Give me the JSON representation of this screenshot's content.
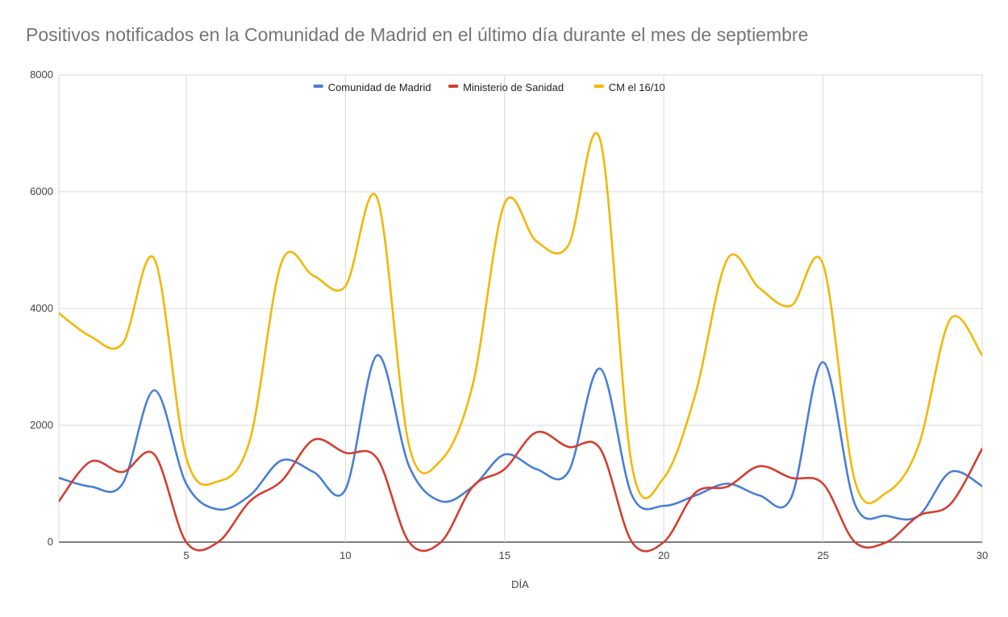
{
  "chart_data": {
    "type": "line",
    "title": "Positivos notificados en la Comunidad de Madrid en el último día durante el mes de septiembre",
    "xlabel": "DÍA",
    "ylabel": "",
    "xlim": [
      1,
      30
    ],
    "ylim": [
      0,
      8000
    ],
    "x_ticks": [
      5,
      10,
      15,
      20,
      25,
      30
    ],
    "y_ticks": [
      0,
      2000,
      4000,
      6000,
      8000
    ],
    "grid": true,
    "legend_position": "top",
    "x": [
      1,
      2,
      3,
      4,
      5,
      6,
      7,
      8,
      9,
      10,
      11,
      12,
      13,
      14,
      15,
      16,
      17,
      18,
      19,
      20,
      21,
      22,
      23,
      24,
      25,
      26,
      27,
      28,
      29,
      30
    ],
    "series": [
      {
        "name": "Comunidad de Madrid",
        "color": "#4a7fd4",
        "values": [
          1100,
          950,
          1000,
          2600,
          1000,
          560,
          800,
          1400,
          1200,
          900,
          3200,
          1300,
          700,
          950,
          1500,
          1250,
          1200,
          2970,
          800,
          620,
          800,
          1000,
          800,
          760,
          3080,
          650,
          450,
          450,
          1200,
          960
        ]
      },
      {
        "name": "Ministerio de Sanidad",
        "color": "#d23f31",
        "values": [
          700,
          1380,
          1200,
          1500,
          0,
          0,
          700,
          1050,
          1750,
          1530,
          1430,
          0,
          0,
          950,
          1250,
          1880,
          1630,
          1600,
          0,
          0,
          850,
          950,
          1300,
          1100,
          1000,
          0,
          0,
          450,
          650,
          1600
        ]
      },
      {
        "name": "CM el 16/10",
        "color": "#f3b706",
        "values": [
          3920,
          3520,
          3400,
          4850,
          1450,
          1040,
          1750,
          4800,
          4560,
          4380,
          5890,
          1650,
          1400,
          2700,
          5800,
          5150,
          5080,
          6890,
          1300,
          1100,
          2550,
          4850,
          4350,
          4050,
          4760,
          1050,
          850,
          1650,
          3820,
          3200
        ]
      }
    ]
  }
}
